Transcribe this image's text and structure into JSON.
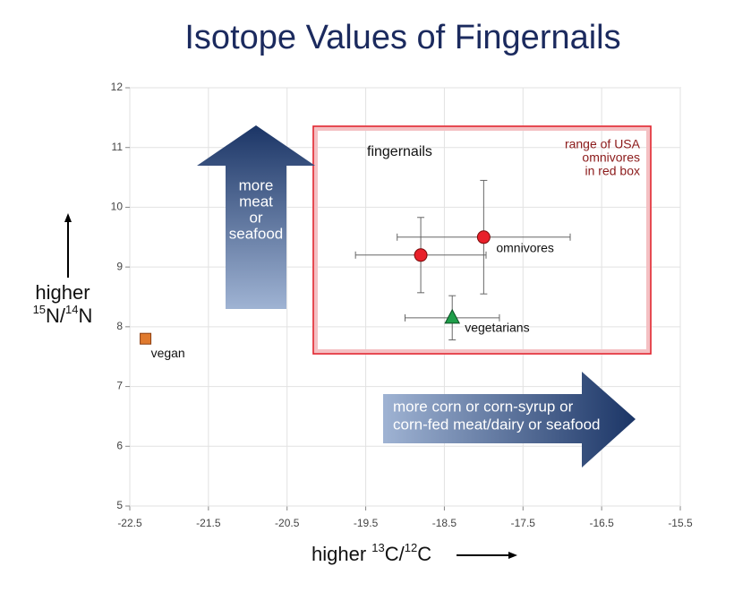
{
  "chart_data": {
    "type": "scatter",
    "title": "Isotope Values of Fingernails",
    "x_label": {
      "word": "higher",
      "mass1": "13",
      "el1": "C/",
      "mass2": "12",
      "el2": "C"
    },
    "y_label": {
      "word": "higher",
      "mass1": "15",
      "el1": "N/",
      "mass2": "14",
      "el2": "N"
    },
    "xlim": [
      -22.5,
      -15.5
    ],
    "xticks": [
      -22.5,
      -21.5,
      -20.5,
      -19.5,
      -18.5,
      -17.5,
      -16.5,
      -15.5
    ],
    "ylim": [
      5,
      12
    ],
    "yticks": [
      5,
      6,
      7,
      8,
      9,
      10,
      11,
      12
    ],
    "grid": true,
    "series": [
      {
        "name": "vegan",
        "color": "#e07a2e",
        "marker": "square",
        "x": [
          -22.3
        ],
        "y": [
          7.8
        ]
      },
      {
        "name": "omnivores",
        "color": "#e8202a",
        "marker": "circle",
        "x": [
          -18.8,
          -18.0
        ],
        "y": [
          9.2,
          9.5
        ],
        "xerr": [
          0.83,
          1.1
        ],
        "yerr": [
          0.63,
          0.95
        ]
      },
      {
        "name": "vegetarians",
        "color": "#1f9e4a",
        "marker": "triangle",
        "x": [
          -18.4
        ],
        "y": [
          8.15
        ],
        "xerr": [
          0.6
        ],
        "yerr": [
          0.37
        ]
      }
    ],
    "box_title": "fingernails",
    "box_note": [
      "range of USA",
      "omnivores",
      "in red box"
    ],
    "up_arrow_text": [
      "more",
      "meat",
      "or",
      "seafood"
    ],
    "right_arrow_text": [
      "more corn or corn-syrup or",
      "corn-fed meat/dairy or seafood"
    ]
  }
}
